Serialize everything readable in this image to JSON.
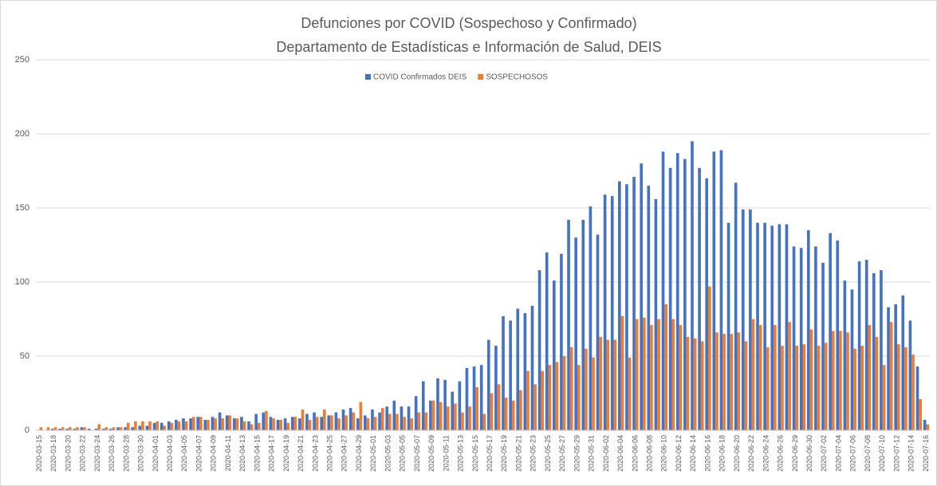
{
  "chart_data": {
    "type": "bar",
    "title": "Defunciones por COVID (Sospechoso y Confirmado)",
    "subtitle": "Departamento de Estadísticas e Información de Salud, DEIS",
    "categories": [
      "2020-03-15",
      null,
      "2020-03-18",
      null,
      "2020-03-20",
      null,
      "2020-03-22",
      null,
      "2020-03-24",
      null,
      "2020-03-26",
      null,
      "2020-03-28",
      null,
      "2020-03-30",
      null,
      "2020-04-01",
      null,
      "2020-04-03",
      null,
      "2020-04-05",
      null,
      "2020-04-07",
      null,
      "2020-04-09",
      null,
      "2020-04-11",
      null,
      "2020-04-13",
      null,
      "2020-04-15",
      null,
      "2020-04-17",
      null,
      "2020-04-19",
      null,
      "2020-04-21",
      null,
      "2020-04-23",
      null,
      "2020-04-25",
      null,
      "2020-04-27",
      null,
      "2020-04-29",
      null,
      "2020-05-01",
      null,
      "2020-05-03",
      null,
      "2020-05-05",
      null,
      "2020-05-07",
      null,
      "2020-05-09",
      null,
      "2020-05-11",
      null,
      "2020-05-13",
      null,
      "2020-05-15",
      null,
      "2020-05-17",
      null,
      "2020-05-19",
      null,
      "2020-05-21",
      null,
      "2020-05-23",
      null,
      "2020-05-25",
      null,
      "2020-05-27",
      null,
      "2020-05-29",
      null,
      "2020-05-31",
      null,
      "2020-06-02",
      null,
      "2020-06-04",
      null,
      "2020-06-06",
      null,
      "2020-06-08",
      null,
      "2020-06-10",
      null,
      "2020-06-12",
      null,
      "2020-06-14",
      null,
      "2020-06-16",
      null,
      "2020-06-18",
      null,
      "2020-06-20",
      null,
      "2020-06-22",
      null,
      "2020-06-24",
      null,
      "2020-06-26",
      null,
      "2020-06-29",
      null,
      "2020-06-30",
      null,
      "2020-07-02",
      null,
      "2020-07-04",
      null,
      "2020-07-06",
      null,
      "2020-07-08",
      null,
      "2020-07-10",
      null,
      "2020-07-12",
      null,
      "2020-07-14",
      null,
      "2020-07-16"
    ],
    "series": [
      {
        "name": "COVID Confirmados DEIS",
        "color": "#4472c4",
        "values": [
          0,
          0,
          1,
          1,
          1,
          1,
          2,
          1,
          1,
          1,
          1,
          2,
          2,
          2,
          3,
          3,
          5,
          5,
          6,
          7,
          8,
          8,
          9,
          7,
          9,
          12,
          10,
          8,
          9,
          6,
          11,
          12,
          9,
          7,
          8,
          9,
          8,
          11,
          12,
          9,
          10,
          12,
          14,
          15,
          8,
          10,
          14,
          12,
          16,
          20,
          16,
          16,
          23,
          33,
          20,
          35,
          34,
          26,
          33,
          42,
          43,
          44,
          61,
          57,
          77,
          74,
          82,
          79,
          84,
          108,
          120,
          101,
          119,
          142,
          130,
          142,
          151,
          132,
          159,
          158,
          168,
          166,
          171,
          180,
          165,
          156,
          188,
          177,
          187,
          183,
          195,
          177,
          170,
          188,
          189,
          140,
          167,
          149,
          149,
          140,
          140,
          138,
          139,
          139,
          124,
          123,
          135,
          124,
          113,
          133,
          128,
          101,
          95,
          114,
          115,
          106,
          108,
          83,
          85,
          91,
          74,
          43,
          7
        ]
      },
      {
        "name": "SOSPECHOSOS",
        "color": "#ed7d31",
        "values": [
          2,
          2,
          2,
          2,
          2,
          2,
          2,
          0,
          4,
          2,
          2,
          2,
          5,
          6,
          6,
          6,
          6,
          3,
          5,
          6,
          6,
          9,
          9,
          7,
          8,
          8,
          10,
          8,
          6,
          4,
          5,
          13,
          8,
          7,
          5,
          9,
          14,
          7,
          9,
          14,
          10,
          8,
          10,
          12,
          19,
          8,
          9,
          15,
          11,
          11,
          9,
          8,
          12,
          12,
          20,
          19,
          16,
          18,
          12,
          16,
          29,
          11,
          25,
          31,
          22,
          20,
          27,
          40,
          31,
          40,
          44,
          46,
          50,
          56,
          44,
          55,
          49,
          63,
          61,
          61,
          77,
          49,
          75,
          76,
          71,
          75,
          85,
          75,
          71,
          63,
          62,
          60,
          97,
          66,
          65,
          65,
          66,
          60,
          75,
          71,
          56,
          71,
          57,
          73,
          57,
          58,
          68,
          57,
          59,
          67,
          67,
          66,
          55,
          57,
          71,
          63,
          44,
          73,
          58,
          56,
          51,
          21,
          4
        ]
      }
    ],
    "ylim": [
      0,
      250
    ],
    "yticks": [
      0,
      50,
      100,
      150,
      200,
      250
    ],
    "grid": true
  }
}
